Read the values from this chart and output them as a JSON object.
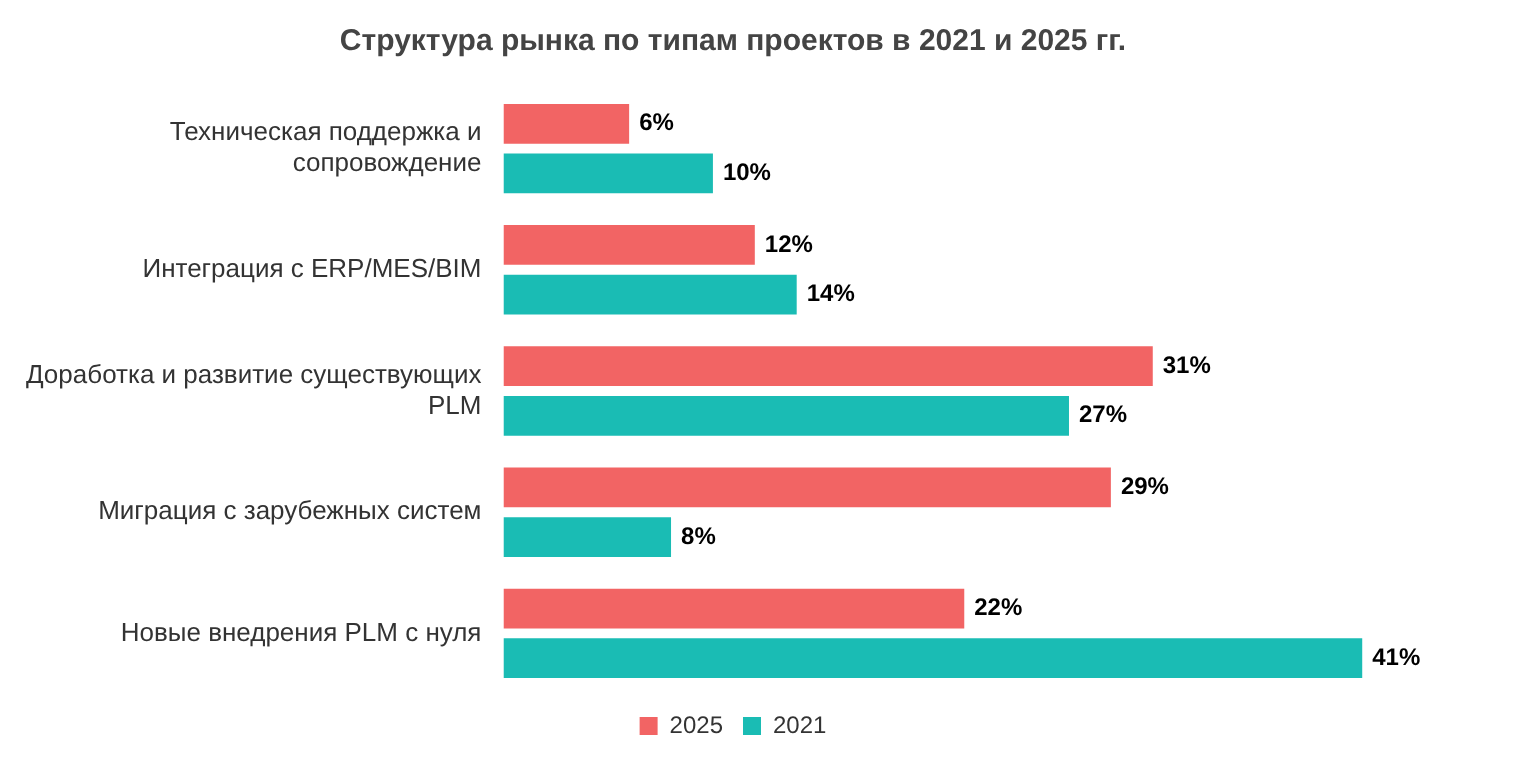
{
  "chart_data": {
    "type": "bar",
    "orientation": "horizontal",
    "title": "Структура рынка по типам проектов в 2021 и 2025 гг.",
    "categories": [
      "Техническая поддержка и сопровождение",
      "Интеграция с ERP/MES/BIM",
      "Доработка и развитие существующих PLM",
      "Миграция с зарубежных систем",
      "Новые внедрения PLM с нуля"
    ],
    "series": [
      {
        "name": "2025",
        "color": "#f26464",
        "values": [
          6,
          12,
          31,
          29,
          22
        ],
        "value_labels": [
          "6%",
          "12%",
          "31%",
          "29%",
          "22%"
        ]
      },
      {
        "name": "2021",
        "color": "#1abcb4",
        "values": [
          10,
          14,
          27,
          8,
          41
        ],
        "value_labels": [
          "10%",
          "14%",
          "27%",
          "8%",
          "41%"
        ]
      }
    ],
    "grid": false,
    "legend": "bottom"
  }
}
